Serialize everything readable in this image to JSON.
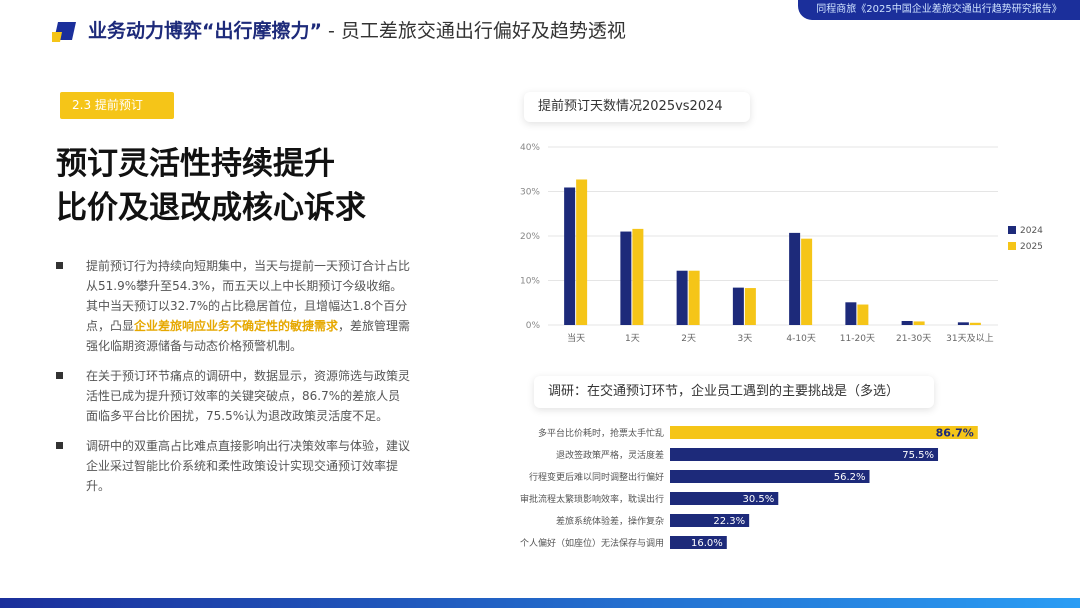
{
  "header": {
    "title_main": "业务动力博弈“出行摩擦力”",
    "title_sub": " - 员工差旅交通出行偏好及趋势透视",
    "top_tag": "同程商旅《2025中国企业差旅交通出行趋势研究报告》"
  },
  "section_tag": "2.3 提前预订",
  "headline": {
    "line1": "预订灵活性持续提升",
    "line2": "比价及退改成核心诉求"
  },
  "bullets": [
    {
      "pre": "提前预订行为持续向短期集中，当天与提前一天预订合计占比从51.9%攀升至54.3%，而五天以上中长期预订今级收缩。其中当天预订以32.7%的占比稳居首位，且增幅达1.8个百分点，凸显",
      "hl": "企业差旅响应业务不确定性的敏捷需求",
      "post": "，差旅管理需强化临期资源储备与动态价格预警机制。"
    },
    {
      "pre": "在关于预订环节痛点的调研中，数据显示，资源筛选与政策灵活性已成为提升预订效率的关键突破点，86.7%的差旅人员面临多平台比价困扰，75.5%认为退改政策灵活度不足。",
      "hl": "",
      "post": ""
    },
    {
      "pre": "调研中的双重高占比难点直接影响出行决策效率与体验，建议企业采过智能比价系统和柔性政策设计实现交通预订效率提升。",
      "hl": "",
      "post": ""
    }
  ],
  "colors": {
    "navy": "#1d2a7a",
    "gold": "#f5c518",
    "blue": "#1b2f9b"
  },
  "chart_data": [
    {
      "type": "bar",
      "title": "提前预订天数情况2025vs2024",
      "categories": [
        "当天",
        "1天",
        "2天",
        "3天",
        "4-10天",
        "11-20天",
        "21-30天",
        "31天及以上"
      ],
      "series": [
        {
          "name": "2024",
          "values": [
            30.9,
            21.0,
            12.2,
            8.4,
            20.7,
            5.1,
            0.9,
            0.6
          ],
          "color": "#1d2a7a"
        },
        {
          "name": "2025",
          "values": [
            32.7,
            21.6,
            12.2,
            8.3,
            19.4,
            4.6,
            0.8,
            0.5
          ],
          "color": "#f5c518"
        }
      ],
      "yticks": [
        "0%",
        "10%",
        "20%",
        "30%",
        "40%"
      ],
      "ylim": [
        0,
        40
      ],
      "legend": "right"
    },
    {
      "type": "bar",
      "title": "调研：在交通预订环节，企业员工遇到的主要挑战是（多选）",
      "categories": [
        "多平台比价耗时，抢票太手忙乱",
        "退改签政策严格，灵活度差",
        "行程变更后难以同时调整出行偏好",
        "审批流程太繁琐影响效率，耽误出行",
        "差旅系统体验差，操作复杂",
        "个人偏好（如座位）无法保存与调用"
      ],
      "values": [
        86.7,
        75.5,
        56.2,
        30.5,
        22.3,
        16.0
      ],
      "labels": [
        "86.7%",
        "75.5%",
        "56.2%",
        "30.5%",
        "22.3%",
        "16.0%"
      ],
      "xlim": [
        0,
        100
      ],
      "orientation": "horizontal"
    }
  ]
}
